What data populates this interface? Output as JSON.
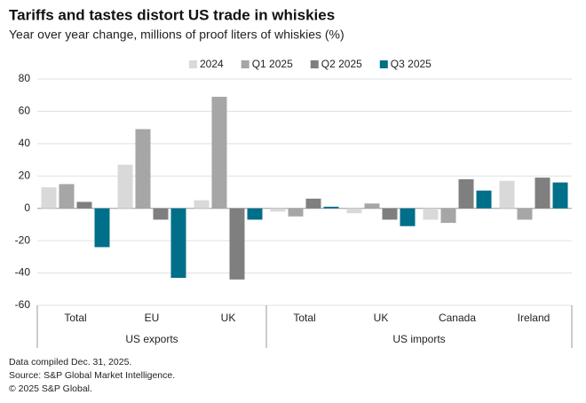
{
  "chart_data": {
    "type": "bar",
    "title": "Tariffs and tastes distort US trade in whiskies",
    "subtitle": "Year over year change, millions of proof liters of whiskies (%)",
    "groups": [
      {
        "name": "US exports",
        "categories": [
          "Total",
          "EU",
          "UK"
        ]
      },
      {
        "name": "US imports",
        "categories": [
          "Total",
          "UK",
          "Canada",
          "Ireland"
        ]
      }
    ],
    "series": [
      {
        "name": "2024",
        "color": "#d9d9d9",
        "values": [
          13,
          27,
          5,
          -2,
          -3,
          -7,
          17
        ]
      },
      {
        "name": "Q1 2025",
        "color": "#a6a6a6",
        "values": [
          15,
          49,
          69,
          -5,
          3,
          -9,
          -7
        ]
      },
      {
        "name": "Q2 2025",
        "color": "#7f7f7f",
        "values": [
          4,
          -7,
          -44,
          6,
          -7,
          18,
          19
        ]
      },
      {
        "name": "Q3 2025",
        "color": "#006f8a",
        "values": [
          -24,
          -43,
          -7,
          1,
          -11,
          11,
          16
        ]
      }
    ],
    "ylim": [
      -60,
      80
    ],
    "yticks": [
      -60,
      -40,
      -20,
      0,
      20,
      40,
      60,
      80
    ],
    "grid": true,
    "legend": "top",
    "notes": [
      "Data compiled Dec. 31, 2025.",
      "Source: S&P Global Market Intelligence.",
      "© 2025 S&P Global."
    ]
  }
}
